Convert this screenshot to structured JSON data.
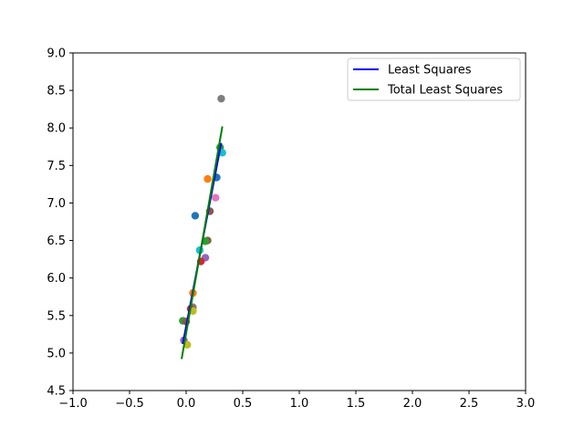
{
  "chart_data": {
    "type": "scatter",
    "title": "",
    "xlabel": "",
    "ylabel": "",
    "xlim": [
      -1.0,
      3.0
    ],
    "ylim": [
      4.5,
      9.0
    ],
    "grid": false,
    "legend_position": "top-right",
    "x_ticks": [
      -1.0,
      -0.5,
      0.0,
      0.5,
      1.0,
      1.5,
      2.0,
      2.5,
      3.0
    ],
    "x_tick_labels": [
      "−1.0",
      "−0.5",
      "0.0",
      "0.5",
      "1.0",
      "1.5",
      "2.0",
      "2.5",
      "3.0"
    ],
    "y_ticks": [
      4.5,
      5.0,
      5.5,
      6.0,
      6.5,
      7.0,
      7.5,
      8.0,
      8.5,
      9.0
    ],
    "y_tick_labels": [
      "4.5",
      "5.0",
      "5.5",
      "6.0",
      "6.5",
      "7.0",
      "7.5",
      "8.0",
      "8.5",
      "9.0"
    ],
    "scatter_points": [
      {
        "x": 0.31,
        "y": 8.39,
        "color": "#7f7f7f"
      },
      {
        "x": 0.3,
        "y": 7.74,
        "color": "#2ca02c"
      },
      {
        "x": 0.32,
        "y": 7.67,
        "color": "#17becf"
      },
      {
        "x": 0.27,
        "y": 7.34,
        "color": "#1f77b4"
      },
      {
        "x": 0.19,
        "y": 7.32,
        "color": "#ff7f0e"
      },
      {
        "x": 0.26,
        "y": 7.07,
        "color": "#e377c2"
      },
      {
        "x": 0.21,
        "y": 6.89,
        "color": "#8c564b"
      },
      {
        "x": 0.08,
        "y": 6.83,
        "color": "#1f77b4"
      },
      {
        "x": 0.19,
        "y": 6.5,
        "color": "#8c564b"
      },
      {
        "x": 0.17,
        "y": 6.49,
        "color": "#2ca02c"
      },
      {
        "x": 0.12,
        "y": 6.37,
        "color": "#17becf"
      },
      {
        "x": 0.17,
        "y": 6.27,
        "color": "#9467bd"
      },
      {
        "x": 0.13,
        "y": 6.22,
        "color": "#d62728"
      },
      {
        "x": 0.06,
        "y": 5.8,
        "color": "#ff7f0e"
      },
      {
        "x": 0.06,
        "y": 5.61,
        "color": "#7f7f7f"
      },
      {
        "x": 0.04,
        "y": 5.59,
        "color": "#d62728"
      },
      {
        "x": 0.06,
        "y": 5.56,
        "color": "#bcbd22"
      },
      {
        "x": -0.03,
        "y": 5.43,
        "color": "#2ca02c"
      },
      {
        "x": 0.0,
        "y": 5.42,
        "color": "#8c564b"
      },
      {
        "x": -0.02,
        "y": 5.17,
        "color": "#9467bd"
      },
      {
        "x": 0.01,
        "y": 5.11,
        "color": "#bcbd22"
      }
    ],
    "series": [
      {
        "name": "Least Squares",
        "type": "line",
        "color": "#0000ff",
        "x": [
          -0.03,
          0.31
        ],
        "y": [
          5.12,
          7.8
        ]
      },
      {
        "name": "Total Least Squares",
        "type": "line",
        "color": "#008000",
        "x": [
          -0.04,
          0.32
        ],
        "y": [
          4.92,
          8.02
        ]
      }
    ]
  }
}
